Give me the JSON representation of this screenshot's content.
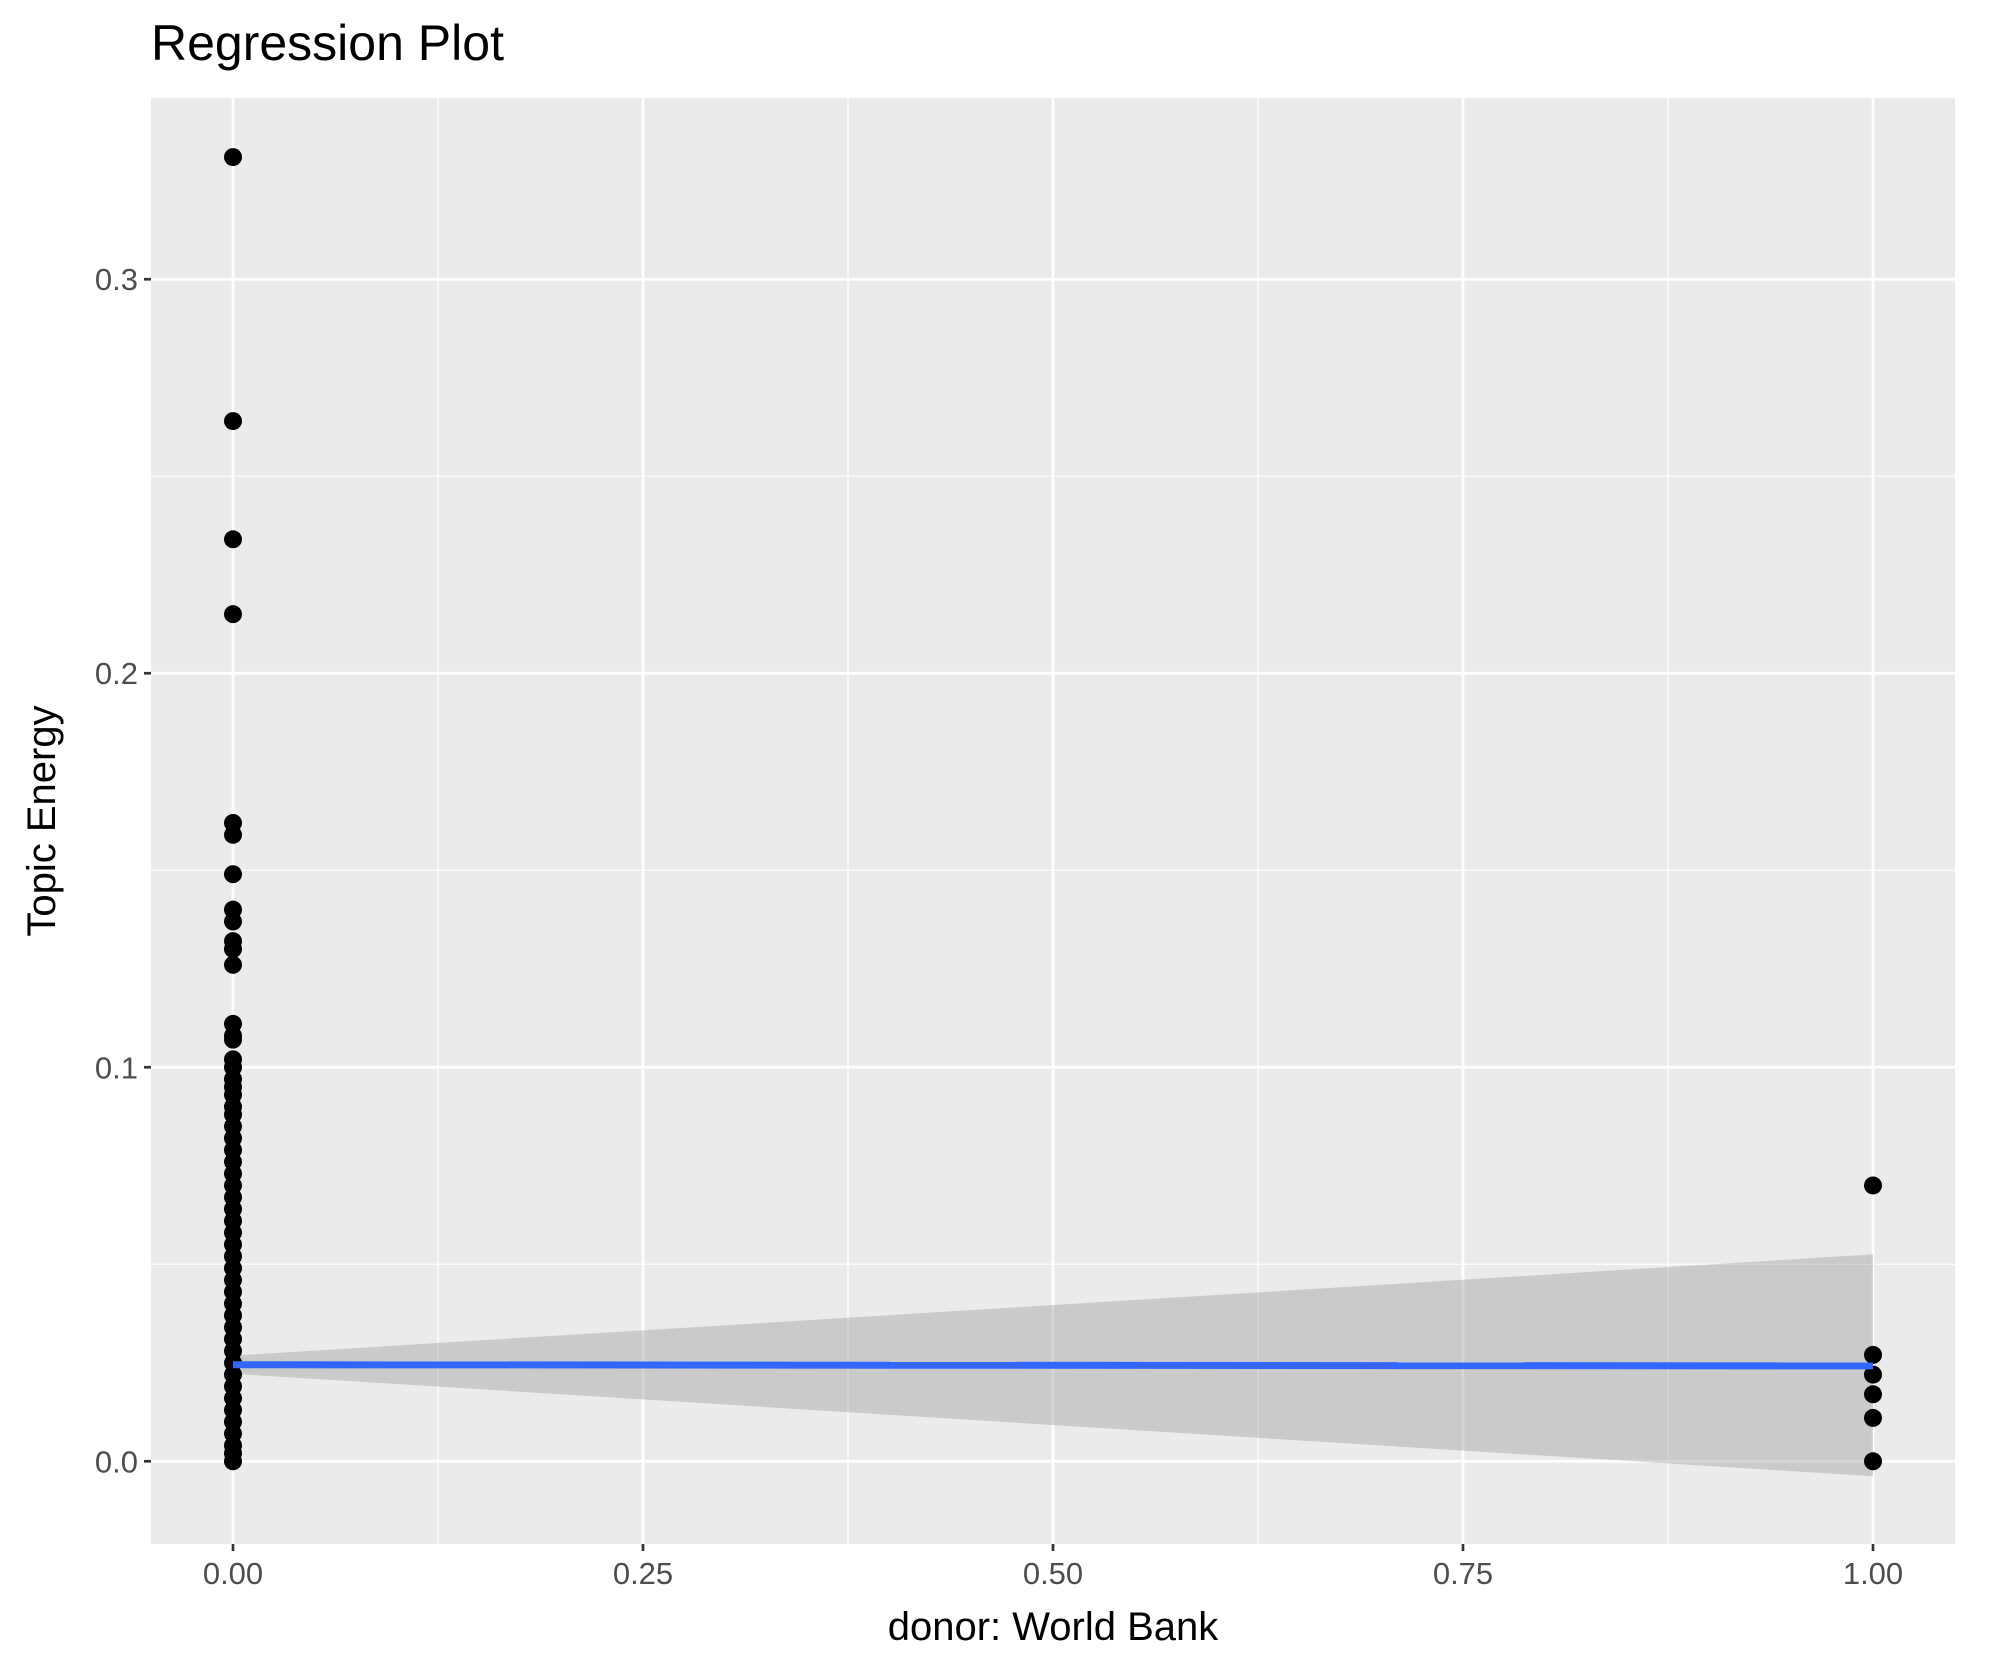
{
  "chart_data": {
    "type": "scatter",
    "title": "Regression Plot",
    "xlabel": "donor: World Bank",
    "ylabel": "Topic Energy",
    "xlim": [
      -0.05,
      1.05
    ],
    "ylim": [
      -0.021,
      0.346
    ],
    "x_ticks": [
      {
        "value": 0.0,
        "label": "0.00"
      },
      {
        "value": 0.25,
        "label": "0.25"
      },
      {
        "value": 0.5,
        "label": "0.50"
      },
      {
        "value": 0.75,
        "label": "0.75"
      },
      {
        "value": 1.0,
        "label": "1.00"
      }
    ],
    "y_ticks": [
      {
        "value": 0.0,
        "label": "0.0"
      },
      {
        "value": 0.1,
        "label": "0.1"
      },
      {
        "value": 0.2,
        "label": "0.2"
      },
      {
        "value": 0.3,
        "label": "0.3"
      }
    ],
    "grid": true,
    "points": [
      [
        0,
        0.331
      ],
      [
        0,
        0.264
      ],
      [
        0,
        0.234
      ],
      [
        0,
        0.215
      ],
      [
        0,
        0.162
      ],
      [
        0,
        0.159
      ],
      [
        0,
        0.149
      ],
      [
        0,
        0.14
      ],
      [
        0,
        0.137
      ],
      [
        0,
        0.132
      ],
      [
        0,
        0.13
      ],
      [
        0,
        0.126
      ],
      [
        0,
        0.111
      ],
      [
        0,
        0.108
      ],
      [
        0,
        0.107
      ],
      [
        0,
        0.102
      ],
      [
        0,
        0.1
      ],
      [
        0,
        0.097
      ],
      [
        0,
        0.095
      ],
      [
        0,
        0.093
      ],
      [
        0,
        0.09
      ],
      [
        0,
        0.088
      ],
      [
        0,
        0.085
      ],
      [
        0,
        0.082
      ],
      [
        0,
        0.079
      ],
      [
        0,
        0.076
      ],
      [
        0,
        0.073
      ],
      [
        0,
        0.07
      ],
      [
        0,
        0.067
      ],
      [
        0,
        0.064
      ],
      [
        0,
        0.061
      ],
      [
        0,
        0.058
      ],
      [
        0,
        0.055
      ],
      [
        0,
        0.052
      ],
      [
        0,
        0.049
      ],
      [
        0,
        0.046
      ],
      [
        0,
        0.043
      ],
      [
        0,
        0.04
      ],
      [
        0,
        0.037
      ],
      [
        0,
        0.034
      ],
      [
        0,
        0.031
      ],
      [
        0,
        0.028
      ],
      [
        0,
        0.025
      ],
      [
        0,
        0.022
      ],
      [
        0,
        0.019
      ],
      [
        0,
        0.016
      ],
      [
        0,
        0.013
      ],
      [
        0,
        0.01
      ],
      [
        0,
        0.007
      ],
      [
        0,
        0.004
      ],
      [
        0,
        0.002
      ],
      [
        0,
        0.0
      ],
      [
        1,
        0.07
      ],
      [
        1,
        0.027
      ],
      [
        1,
        0.022
      ],
      [
        1,
        0.017
      ],
      [
        1,
        0.011
      ],
      [
        1,
        0.0
      ]
    ],
    "regression_line": {
      "x": [
        0,
        1
      ],
      "y": [
        0.0245,
        0.0242
      ],
      "color": "#3366ff"
    },
    "confidence_band": {
      "x": [
        0,
        1
      ],
      "upper": [
        0.0268,
        0.0525
      ],
      "lower": [
        0.0222,
        -0.0038
      ],
      "color": "#999999"
    },
    "point_color": "#000000",
    "panel_background": "#ebebeb",
    "grid_color": "#ffffff"
  }
}
